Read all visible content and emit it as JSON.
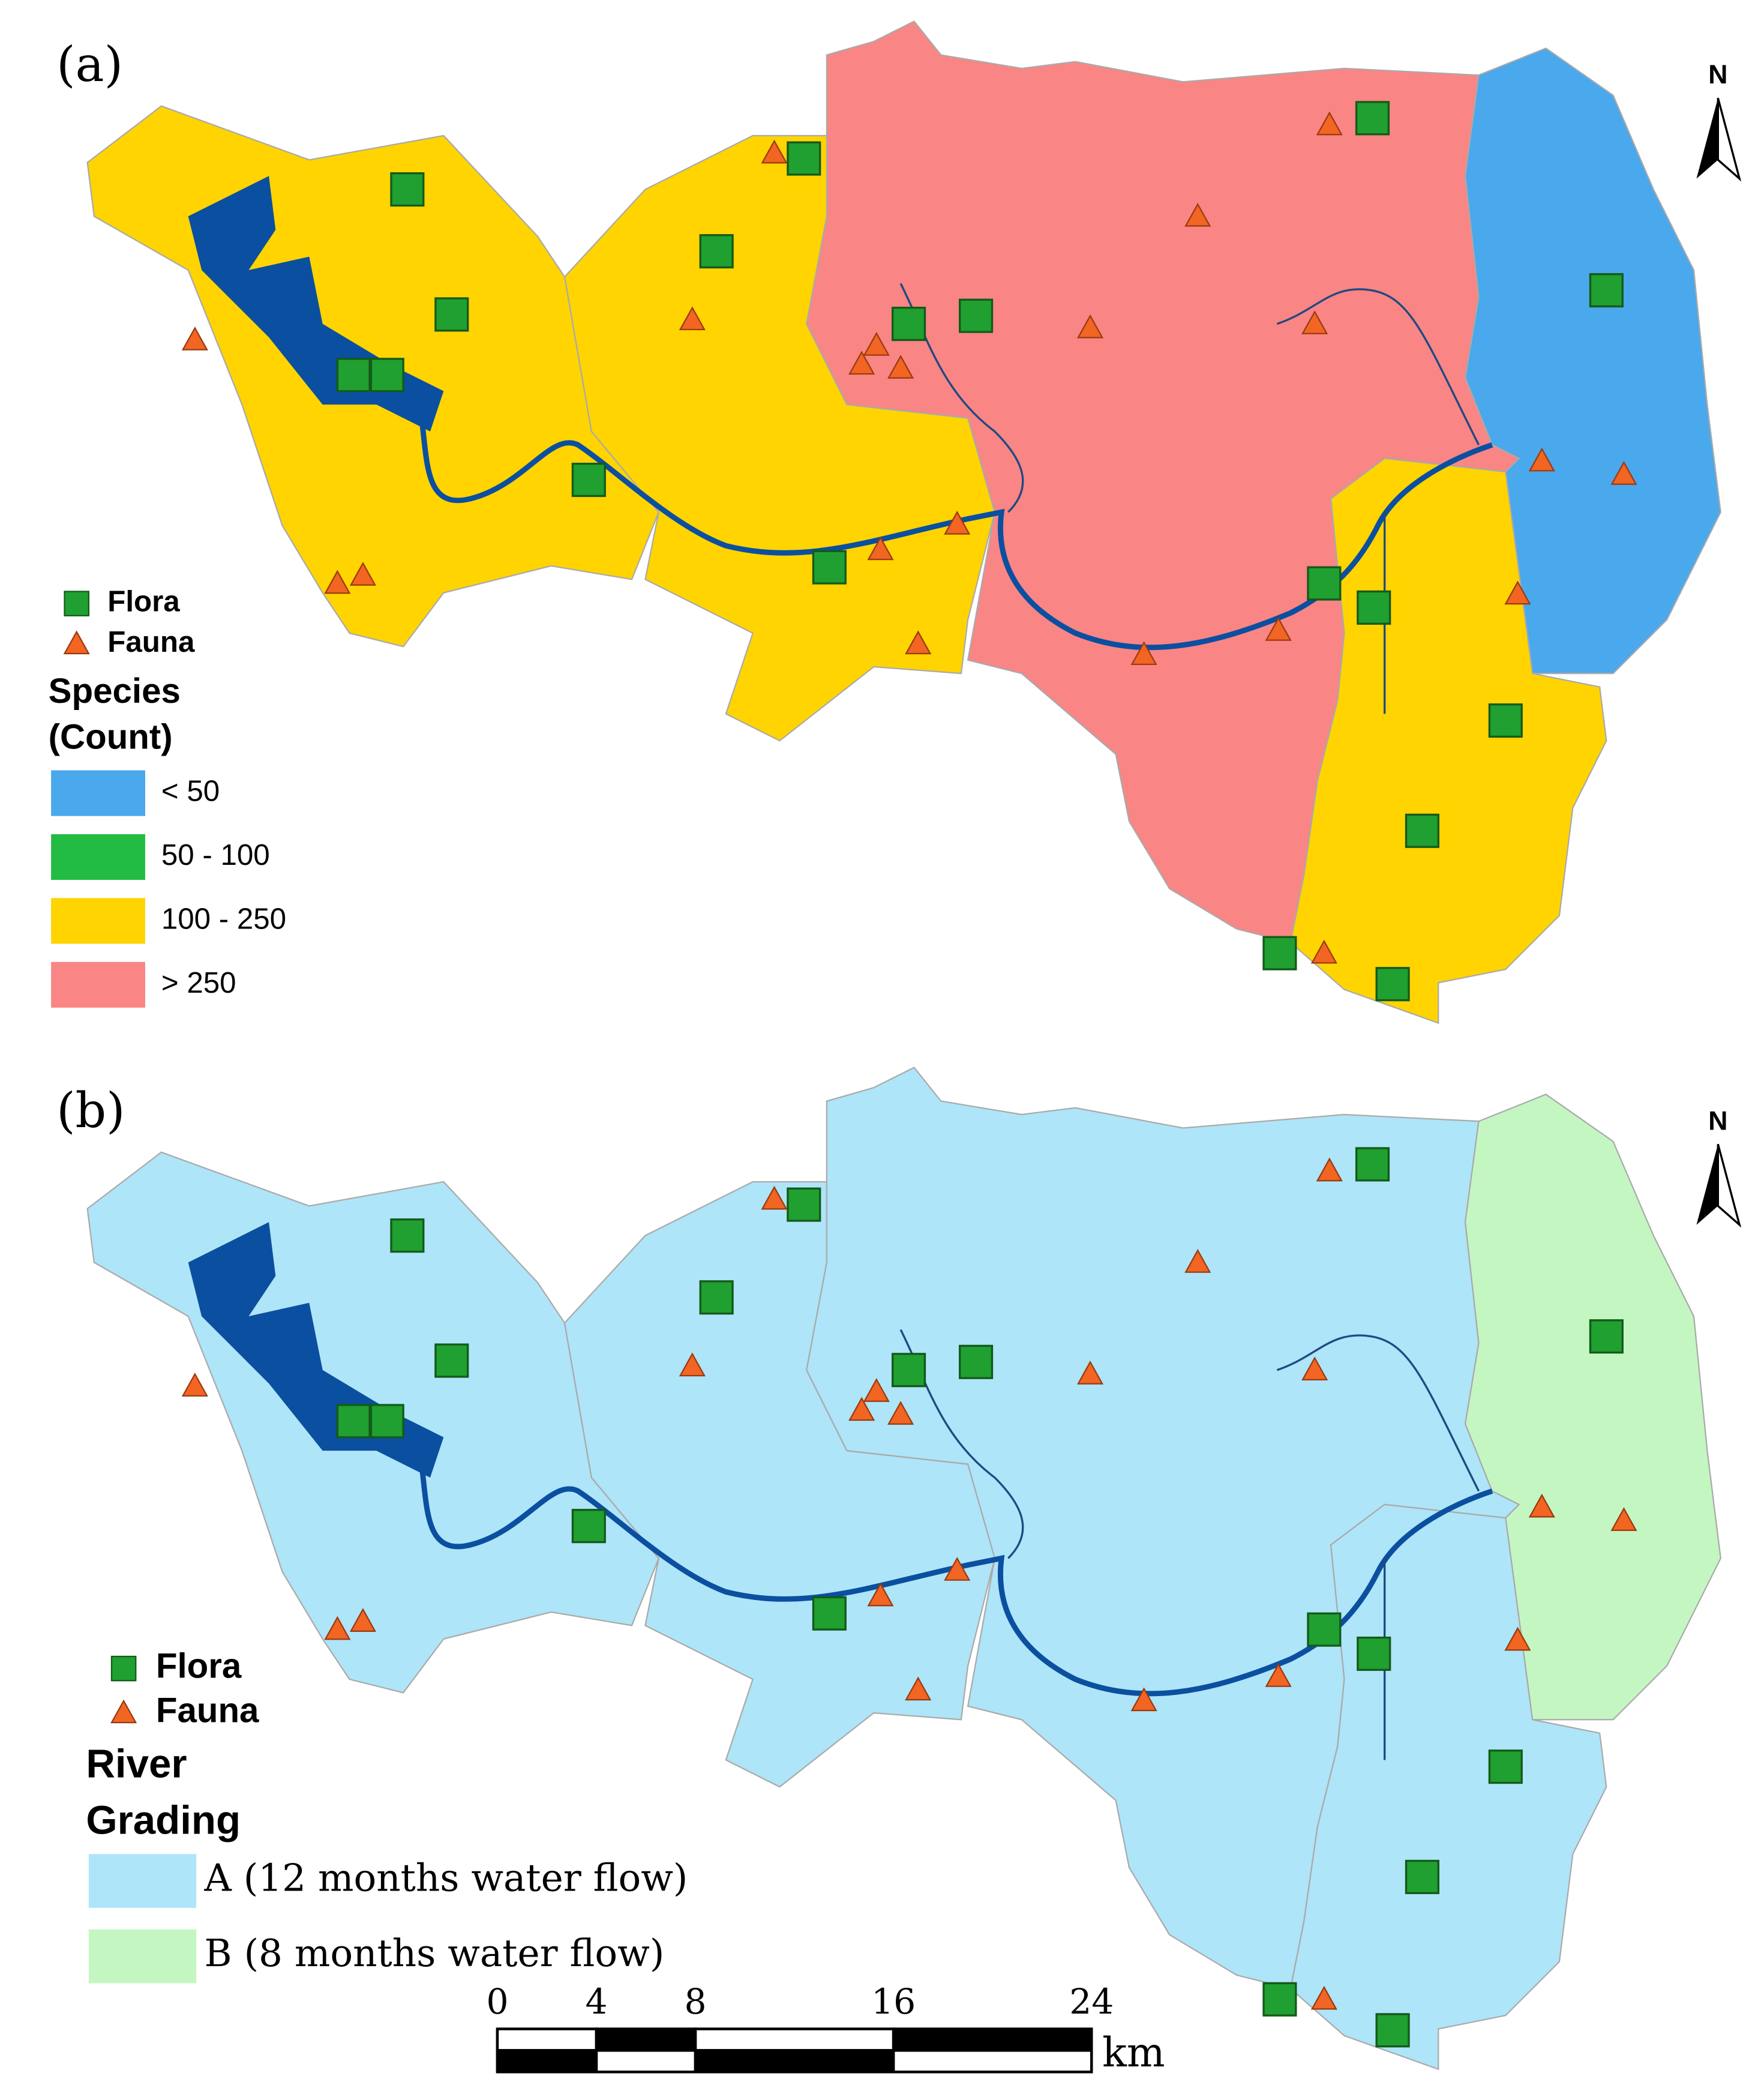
{
  "panels": [
    {
      "label": "(a)",
      "north": "N",
      "legend": {
        "markers": [
          "Flora",
          "Fauna"
        ],
        "title": [
          "Species",
          "(Count)"
        ],
        "classes": [
          {
            "label": "< 50",
            "color": "#4aa8ec"
          },
          {
            "label": "50 - 100",
            "color": "#22bb44"
          },
          {
            "label": "100 - 250",
            "color": "#ffd400"
          },
          {
            "label": "> 250",
            "color": "#f98585"
          }
        ]
      }
    },
    {
      "label": "(b)",
      "north": "N",
      "legend": {
        "markers": [
          "Flora",
          "Fauna"
        ],
        "title": [
          "River",
          "Grading"
        ],
        "classes": [
          {
            "label": "A (12 months water flow)",
            "color": "#aee5f8"
          },
          {
            "label": "B (8 months water flow)",
            "color": "#c4f6c2"
          }
        ]
      }
    }
  ],
  "scale_bar": {
    "ticks": [
      0,
      4,
      8,
      16,
      24
    ],
    "unit": "km"
  }
}
